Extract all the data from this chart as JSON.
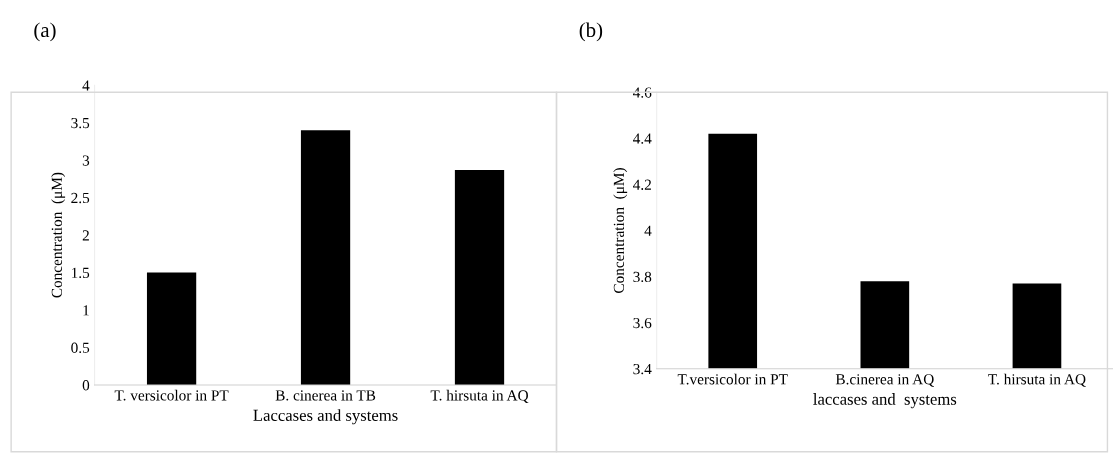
{
  "chart_data": [
    {
      "type": "bar",
      "title": "(a)",
      "xlabel": "Laccases and systems",
      "ylabel": "Concentration  (μM)",
      "categories": [
        "T. versicolor in PT",
        "B. cinerea in TB",
        "T. hirsuta in AQ"
      ],
      "values": [
        1.5,
        3.4,
        2.87
      ],
      "color": "#000000",
      "ylim": [
        0,
        4
      ],
      "yticks": [
        0,
        0.5,
        1,
        1.5,
        2,
        2.5,
        3,
        3.5,
        4
      ],
      "grid": false
    },
    {
      "type": "bar",
      "title": "(b)",
      "xlabel": "laccases and  systems",
      "ylabel": "Concentration  (μM)",
      "categories": [
        "T.versicolor in PT",
        "B.cinerea in AQ",
        "T. hirsuta in AQ"
      ],
      "values": [
        4.42,
        3.78,
        3.77
      ],
      "color": "#000000",
      "ylim": [
        3.4,
        4.6
      ],
      "yticks": [
        3.4,
        3.6,
        3.8,
        4,
        4.2,
        4.4,
        4.6
      ],
      "grid": false
    }
  ]
}
